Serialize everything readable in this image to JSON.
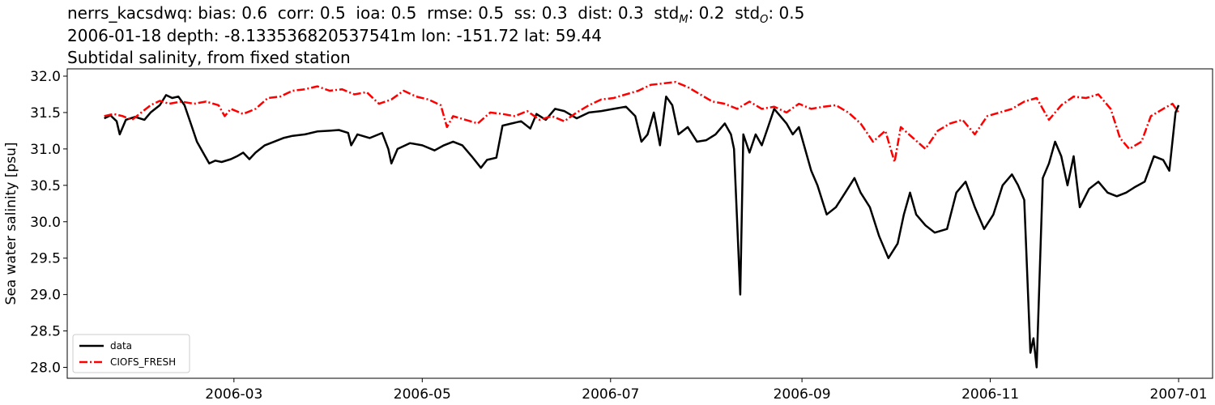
{
  "header": {
    "station": "nerrs_kacsdwq",
    "stats": [
      {
        "label": "bias",
        "sub": "",
        "value": "0.6"
      },
      {
        "label": "corr",
        "sub": "",
        "value": "0.5"
      },
      {
        "label": "ioa",
        "sub": "",
        "value": "0.5"
      },
      {
        "label": "rmse",
        "sub": "",
        "value": "0.5"
      },
      {
        "label": "ss",
        "sub": "",
        "value": "0.3"
      },
      {
        "label": "dist",
        "sub": "",
        "value": "0.3"
      },
      {
        "label": "std",
        "sub": "M",
        "value": "0.2"
      },
      {
        "label": "std",
        "sub": "O",
        "value": "0.5"
      }
    ],
    "line2": "2006-01-18 depth: -8.133536820537541m lon: -151.72 lat: 59.44",
    "line3": "Subtidal salinity, from fixed station"
  },
  "chart_data": {
    "type": "line",
    "ylabel": "Sea water salinity [psu]",
    "ylim": [
      27.85,
      32.1
    ],
    "xlim": [
      "2006-01-06",
      "2007-01-12"
    ],
    "yticks": [
      28.0,
      28.5,
      29.0,
      29.5,
      30.0,
      30.5,
      31.0,
      31.5,
      32.0
    ],
    "xticks": [
      "2006-03-01",
      "2006-05-01",
      "2006-07-01",
      "2006-09-01",
      "2006-11-01",
      "2007-01-01"
    ],
    "xtick_labels": [
      "2006-03",
      "2006-05",
      "2006-07",
      "2006-09",
      "2006-11",
      "2007-01"
    ],
    "legend_position": "lower-left",
    "series": [
      {
        "name": "data",
        "color": "#000000",
        "style": "solid",
        "points": [
          [
            "2006-01-18",
            31.42
          ],
          [
            "2006-01-20",
            31.46
          ],
          [
            "2006-01-22",
            31.38
          ],
          [
            "2006-01-23",
            31.2
          ],
          [
            "2006-01-25",
            31.4
          ],
          [
            "2006-01-28",
            31.44
          ],
          [
            "2006-01-31",
            31.4
          ],
          [
            "2006-02-02",
            31.5
          ],
          [
            "2006-02-05",
            31.6
          ],
          [
            "2006-02-07",
            31.74
          ],
          [
            "2006-02-09",
            31.7
          ],
          [
            "2006-02-11",
            31.72
          ],
          [
            "2006-02-13",
            31.6
          ],
          [
            "2006-02-15",
            31.35
          ],
          [
            "2006-02-17",
            31.1
          ],
          [
            "2006-02-19",
            30.95
          ],
          [
            "2006-02-21",
            30.8
          ],
          [
            "2006-02-23",
            30.84
          ],
          [
            "2006-02-25",
            30.82
          ],
          [
            "2006-02-28",
            30.86
          ],
          [
            "2006-03-02",
            30.9
          ],
          [
            "2006-03-04",
            30.95
          ],
          [
            "2006-03-06",
            30.86
          ],
          [
            "2006-03-08",
            30.95
          ],
          [
            "2006-03-11",
            31.05
          ],
          [
            "2006-03-14",
            31.1
          ],
          [
            "2006-03-17",
            31.15
          ],
          [
            "2006-03-20",
            31.18
          ],
          [
            "2006-03-24",
            31.2
          ],
          [
            "2006-03-28",
            31.24
          ],
          [
            "2006-04-01",
            31.25
          ],
          [
            "2006-04-04",
            31.26
          ],
          [
            "2006-04-07",
            31.22
          ],
          [
            "2006-04-08",
            31.05
          ],
          [
            "2006-04-10",
            31.2
          ],
          [
            "2006-04-14",
            31.15
          ],
          [
            "2006-04-18",
            31.22
          ],
          [
            "2006-04-20",
            31.0
          ],
          [
            "2006-04-21",
            30.8
          ],
          [
            "2006-04-23",
            31.0
          ],
          [
            "2006-04-27",
            31.08
          ],
          [
            "2006-05-01",
            31.05
          ],
          [
            "2006-05-05",
            30.98
          ],
          [
            "2006-05-08",
            31.05
          ],
          [
            "2006-05-11",
            31.1
          ],
          [
            "2006-05-14",
            31.05
          ],
          [
            "2006-05-17",
            30.9
          ],
          [
            "2006-05-20",
            30.74
          ],
          [
            "2006-05-22",
            30.85
          ],
          [
            "2006-05-25",
            30.88
          ],
          [
            "2006-05-27",
            31.32
          ],
          [
            "2006-05-30",
            31.35
          ],
          [
            "2006-06-02",
            31.38
          ],
          [
            "2006-06-05",
            31.28
          ],
          [
            "2006-06-07",
            31.48
          ],
          [
            "2006-06-10",
            31.4
          ],
          [
            "2006-06-13",
            31.55
          ],
          [
            "2006-06-16",
            31.52
          ],
          [
            "2006-06-20",
            31.42
          ],
          [
            "2006-06-24",
            31.5
          ],
          [
            "2006-06-28",
            31.52
          ],
          [
            "2006-07-02",
            31.55
          ],
          [
            "2006-07-06",
            31.58
          ],
          [
            "2006-07-09",
            31.45
          ],
          [
            "2006-07-11",
            31.1
          ],
          [
            "2006-07-13",
            31.2
          ],
          [
            "2006-07-15",
            31.5
          ],
          [
            "2006-07-17",
            31.05
          ],
          [
            "2006-07-19",
            31.72
          ],
          [
            "2006-07-21",
            31.6
          ],
          [
            "2006-07-23",
            31.2
          ],
          [
            "2006-07-26",
            31.3
          ],
          [
            "2006-07-29",
            31.1
          ],
          [
            "2006-08-01",
            31.12
          ],
          [
            "2006-08-04",
            31.2
          ],
          [
            "2006-08-07",
            31.35
          ],
          [
            "2006-08-09",
            31.2
          ],
          [
            "2006-08-10",
            31.0
          ],
          [
            "2006-08-12",
            29.0
          ],
          [
            "2006-08-13",
            31.2
          ],
          [
            "2006-08-15",
            30.95
          ],
          [
            "2006-08-17",
            31.2
          ],
          [
            "2006-08-19",
            31.05
          ],
          [
            "2006-08-21",
            31.3
          ],
          [
            "2006-08-23",
            31.55
          ],
          [
            "2006-08-25",
            31.45
          ],
          [
            "2006-08-27",
            31.35
          ],
          [
            "2006-08-29",
            31.2
          ],
          [
            "2006-08-31",
            31.3
          ],
          [
            "2006-09-02",
            31.0
          ],
          [
            "2006-09-04",
            30.7
          ],
          [
            "2006-09-06",
            30.5
          ],
          [
            "2006-09-09",
            30.1
          ],
          [
            "2006-09-12",
            30.2
          ],
          [
            "2006-09-15",
            30.4
          ],
          [
            "2006-09-18",
            30.6
          ],
          [
            "2006-09-20",
            30.4
          ],
          [
            "2006-09-23",
            30.2
          ],
          [
            "2006-09-26",
            29.8
          ],
          [
            "2006-09-29",
            29.5
          ],
          [
            "2006-10-02",
            29.7
          ],
          [
            "2006-10-04",
            30.1
          ],
          [
            "2006-10-06",
            30.4
          ],
          [
            "2006-10-08",
            30.1
          ],
          [
            "2006-10-11",
            29.95
          ],
          [
            "2006-10-14",
            29.85
          ],
          [
            "2006-10-18",
            29.9
          ],
          [
            "2006-10-21",
            30.4
          ],
          [
            "2006-10-24",
            30.55
          ],
          [
            "2006-10-27",
            30.2
          ],
          [
            "2006-10-30",
            29.9
          ],
          [
            "2006-11-02",
            30.1
          ],
          [
            "2006-11-05",
            30.5
          ],
          [
            "2006-11-08",
            30.65
          ],
          [
            "2006-11-10",
            30.5
          ],
          [
            "2006-11-12",
            30.3
          ],
          [
            "2006-11-14",
            28.2
          ],
          [
            "2006-11-15",
            28.4
          ],
          [
            "2006-11-16",
            28.0
          ],
          [
            "2006-11-18",
            30.6
          ],
          [
            "2006-11-20",
            30.8
          ],
          [
            "2006-11-22",
            31.1
          ],
          [
            "2006-11-24",
            30.9
          ],
          [
            "2006-11-26",
            30.5
          ],
          [
            "2006-11-28",
            30.9
          ],
          [
            "2006-11-30",
            30.2
          ],
          [
            "2006-12-03",
            30.45
          ],
          [
            "2006-12-06",
            30.55
          ],
          [
            "2006-12-09",
            30.4
          ],
          [
            "2006-12-12",
            30.35
          ],
          [
            "2006-12-15",
            30.4
          ],
          [
            "2006-12-18",
            30.48
          ],
          [
            "2006-12-21",
            30.55
          ],
          [
            "2006-12-24",
            30.9
          ],
          [
            "2006-12-27",
            30.85
          ],
          [
            "2006-12-29",
            30.7
          ],
          [
            "2006-12-31",
            31.5
          ],
          [
            "2007-01-01",
            31.6
          ]
        ]
      },
      {
        "name": "CIOFS_FRESH",
        "color": "#ff0000",
        "style": "dashdot",
        "points": [
          [
            "2006-01-18",
            31.45
          ],
          [
            "2006-01-21",
            31.48
          ],
          [
            "2006-01-24",
            31.45
          ],
          [
            "2006-01-27",
            31.4
          ],
          [
            "2006-01-30",
            31.5
          ],
          [
            "2006-02-02",
            31.6
          ],
          [
            "2006-02-05",
            31.66
          ],
          [
            "2006-02-08",
            31.62
          ],
          [
            "2006-02-12",
            31.65
          ],
          [
            "2006-02-16",
            31.62
          ],
          [
            "2006-02-20",
            31.65
          ],
          [
            "2006-02-24",
            31.6
          ],
          [
            "2006-02-26",
            31.45
          ],
          [
            "2006-02-28",
            31.55
          ],
          [
            "2006-03-04",
            31.48
          ],
          [
            "2006-03-08",
            31.55
          ],
          [
            "2006-03-12",
            31.7
          ],
          [
            "2006-03-16",
            31.72
          ],
          [
            "2006-03-20",
            31.8
          ],
          [
            "2006-03-24",
            31.82
          ],
          [
            "2006-03-28",
            31.86
          ],
          [
            "2006-04-01",
            31.8
          ],
          [
            "2006-04-05",
            31.82
          ],
          [
            "2006-04-09",
            31.75
          ],
          [
            "2006-04-13",
            31.78
          ],
          [
            "2006-04-17",
            31.62
          ],
          [
            "2006-04-21",
            31.68
          ],
          [
            "2006-04-25",
            31.8
          ],
          [
            "2006-04-29",
            31.72
          ],
          [
            "2006-05-03",
            31.68
          ],
          [
            "2006-05-07",
            31.6
          ],
          [
            "2006-05-09",
            31.3
          ],
          [
            "2006-05-11",
            31.45
          ],
          [
            "2006-05-15",
            31.4
          ],
          [
            "2006-05-19",
            31.35
          ],
          [
            "2006-05-23",
            31.5
          ],
          [
            "2006-05-27",
            31.48
          ],
          [
            "2006-05-31",
            31.45
          ],
          [
            "2006-06-04",
            31.52
          ],
          [
            "2006-06-08",
            31.4
          ],
          [
            "2006-06-12",
            31.45
          ],
          [
            "2006-06-16",
            31.38
          ],
          [
            "2006-06-20",
            31.5
          ],
          [
            "2006-06-24",
            31.6
          ],
          [
            "2006-06-28",
            31.68
          ],
          [
            "2006-07-02",
            31.7
          ],
          [
            "2006-07-06",
            31.75
          ],
          [
            "2006-07-10",
            31.8
          ],
          [
            "2006-07-14",
            31.88
          ],
          [
            "2006-07-18",
            31.9
          ],
          [
            "2006-07-22",
            31.92
          ],
          [
            "2006-07-26",
            31.85
          ],
          [
            "2006-07-30",
            31.75
          ],
          [
            "2006-08-03",
            31.65
          ],
          [
            "2006-08-07",
            31.62
          ],
          [
            "2006-08-11",
            31.55
          ],
          [
            "2006-08-15",
            31.65
          ],
          [
            "2006-08-19",
            31.55
          ],
          [
            "2006-08-23",
            31.58
          ],
          [
            "2006-08-27",
            31.5
          ],
          [
            "2006-08-31",
            31.62
          ],
          [
            "2006-09-04",
            31.55
          ],
          [
            "2006-09-08",
            31.58
          ],
          [
            "2006-09-12",
            31.6
          ],
          [
            "2006-09-16",
            31.5
          ],
          [
            "2006-09-20",
            31.35
          ],
          [
            "2006-09-24",
            31.1
          ],
          [
            "2006-09-28",
            31.25
          ],
          [
            "2006-10-01",
            30.82
          ],
          [
            "2006-10-03",
            31.3
          ],
          [
            "2006-10-07",
            31.15
          ],
          [
            "2006-10-11",
            31.0
          ],
          [
            "2006-10-15",
            31.25
          ],
          [
            "2006-10-19",
            31.35
          ],
          [
            "2006-10-23",
            31.4
          ],
          [
            "2006-10-27",
            31.2
          ],
          [
            "2006-10-31",
            31.45
          ],
          [
            "2006-11-04",
            31.5
          ],
          [
            "2006-11-08",
            31.55
          ],
          [
            "2006-11-12",
            31.65
          ],
          [
            "2006-11-16",
            31.7
          ],
          [
            "2006-11-20",
            31.4
          ],
          [
            "2006-11-24",
            31.6
          ],
          [
            "2006-11-28",
            31.72
          ],
          [
            "2006-12-02",
            31.7
          ],
          [
            "2006-12-06",
            31.75
          ],
          [
            "2006-12-10",
            31.55
          ],
          [
            "2006-12-13",
            31.15
          ],
          [
            "2006-12-16",
            31.0
          ],
          [
            "2006-12-20",
            31.1
          ],
          [
            "2006-12-23",
            31.45
          ],
          [
            "2006-12-27",
            31.55
          ],
          [
            "2006-12-30",
            31.62
          ],
          [
            "2007-01-01",
            31.5
          ]
        ]
      }
    ]
  }
}
